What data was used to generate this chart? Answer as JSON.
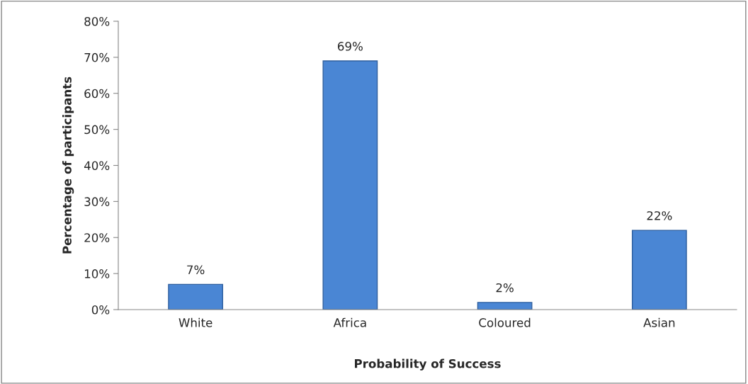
{
  "chart_data": {
    "type": "bar",
    "xlabel": "Probability of Success",
    "ylabel": "Percentage of participants",
    "categories": [
      "White",
      "Africa",
      "Coloured",
      "Asian"
    ],
    "values": [
      7,
      69,
      2,
      22
    ],
    "value_labels": [
      "7%",
      "69%",
      "2%",
      "22%"
    ],
    "color": "#4a86d4",
    "ylim": [
      0,
      80
    ],
    "yticks": [
      {
        "value": 0,
        "label": "0%"
      },
      {
        "value": 10,
        "label": "10%"
      },
      {
        "value": 20,
        "label": "20%"
      },
      {
        "value": 30,
        "label": "30%"
      },
      {
        "value": 40,
        "label": "40%"
      },
      {
        "value": 50,
        "label": "50%"
      },
      {
        "value": 60,
        "label": "60%"
      },
      {
        "value": 70,
        "label": "70%"
      },
      {
        "value": 80,
        "label": "80%"
      }
    ],
    "grid": false,
    "legend": false
  }
}
